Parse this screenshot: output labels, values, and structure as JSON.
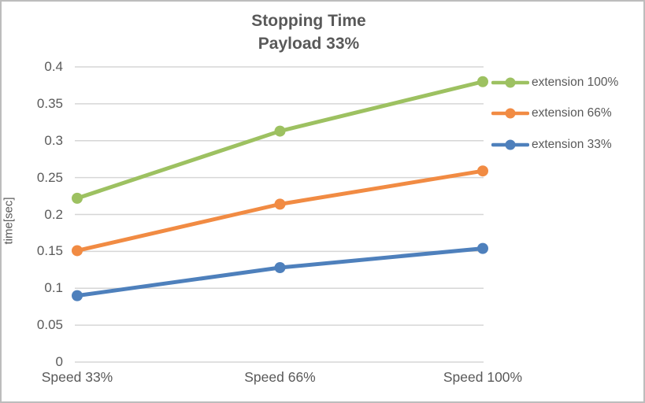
{
  "window": {
    "background_color": "#ffffff",
    "border_color": "#bdbdbd"
  },
  "style": {
    "text_color": "#595959",
    "grid_color": "#d6d6d6"
  },
  "chart_data": {
    "type": "line",
    "title": "Stopping Time",
    "subtitle": "Payload 33%",
    "xlabel": "",
    "ylabel": "time[sec]",
    "categories": [
      "Speed 33%",
      "Speed 66%",
      "Speed 100%"
    ],
    "series": [
      {
        "name": "extension 100%",
        "color": "#9dc161",
        "values": [
          0.222,
          0.313,
          0.38
        ]
      },
      {
        "name": "extension 66%",
        "color": "#f18b43",
        "values": [
          0.151,
          0.214,
          0.259
        ]
      },
      {
        "name": "extension 33%",
        "color": "#4e80bc",
        "values": [
          0.09,
          0.128,
          0.154
        ]
      }
    ],
    "ylim": [
      0,
      0.4
    ],
    "y_ticks": [
      0,
      0.05,
      0.1,
      0.15,
      0.2,
      0.25,
      0.3,
      0.35,
      0.4
    ],
    "y_tick_labels": [
      "0",
      "0.05",
      "0.1",
      "0.15",
      "0.2",
      "0.25",
      "0.3",
      "0.35",
      "0.4"
    ],
    "grid": true,
    "legend_position": "right",
    "marker": "circle"
  }
}
